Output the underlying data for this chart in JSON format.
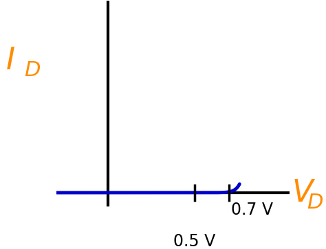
{
  "label_color": "#FF8C00",
  "curve_color": "#0000CC",
  "axis_color": "#000000",
  "tick_05_label": "0.5 V",
  "tick_07_label": "0.7 V",
  "v_05": 0.5,
  "v_07": 0.7,
  "vt": 0.026,
  "Is": 1e-14,
  "xlim": [
    -0.3,
    1.05
  ],
  "ylim": [
    -0.08,
    1.1
  ],
  "figsize": [
    4.74,
    3.63
  ],
  "dpi": 100,
  "curve_linewidth": 3.5,
  "axis_linewidth": 3.0,
  "tick_linewidth": 2.5,
  "label_fontsize": 32,
  "subscript_fontsize": 22,
  "annotation_fontsize": 17
}
